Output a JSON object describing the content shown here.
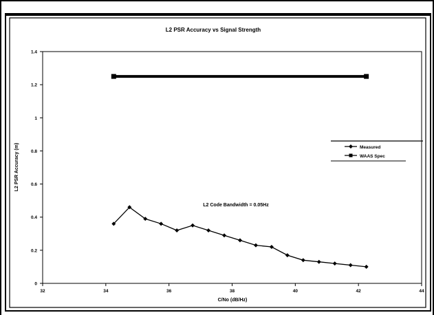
{
  "chart_data": {
    "type": "line",
    "title": "L2 PSR Accuracy vs Signal Strength",
    "xlabel": "C/No (dB/Hz)",
    "ylabel": "L2 PSR Accuracy (m)",
    "xlim": [
      32,
      44
    ],
    "ylim": [
      0,
      1.4
    ],
    "x_ticks": [
      "32",
      "34",
      "36",
      "38",
      "40",
      "42",
      "44"
    ],
    "y_ticks": [
      "0",
      "0.2",
      "0.4",
      "0.6",
      "0.8",
      "1",
      "1.2",
      "1.4"
    ],
    "x_tick_values": [
      32,
      34,
      36,
      38,
      40,
      42,
      44
    ],
    "y_tick_values": [
      0,
      0.2,
      0.4,
      0.6,
      0.8,
      1,
      1.2,
      1.4
    ],
    "grid": false,
    "legend_position": "right",
    "annotation": "L2 Code Bandwidth = 0.05Hz",
    "series": [
      {
        "name": "Measured",
        "marker": "diamond",
        "color": "#000000",
        "x": [
          34.25,
          34.75,
          35.25,
          35.75,
          36.25,
          36.75,
          37.25,
          37.75,
          38.25,
          38.75,
          39.25,
          39.75,
          40.25,
          40.75,
          41.25,
          41.75,
          42.25
        ],
        "y": [
          0.36,
          0.46,
          0.39,
          0.36,
          0.32,
          0.35,
          0.32,
          0.29,
          0.26,
          0.23,
          0.22,
          0.17,
          0.14,
          0.13,
          0.12,
          0.11,
          0.1
        ]
      },
      {
        "name": "WAAS Spec",
        "marker": "square",
        "color": "#000000",
        "x": [
          34.25,
          42.25
        ],
        "y": [
          1.25,
          1.25
        ]
      }
    ]
  }
}
